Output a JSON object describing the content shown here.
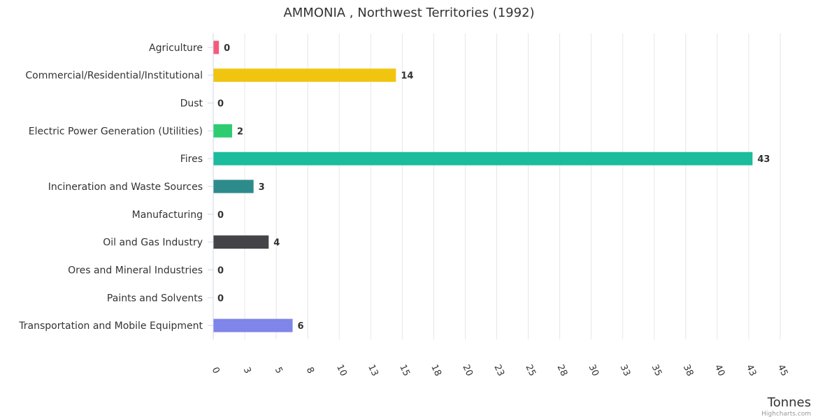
{
  "chart_data": {
    "type": "bar",
    "orientation": "horizontal",
    "title": "AMMONIA , Northwest Territories (1992)",
    "xlabel": "Tonnes",
    "categories": [
      "Agriculture",
      "Commercial/Residential/Institutional",
      "Dust",
      "Electric Power Generation (Utilities)",
      "Fires",
      "Incineration and Waste Sources",
      "Manufacturing",
      "Oil and Gas Industry",
      "Ores and Mineral Industries",
      "Paints and Solvents",
      "Transportation and Mobile Equipment"
    ],
    "values": [
      0.45,
      14.5,
      0,
      1.5,
      42.8,
      3.2,
      0,
      4.4,
      0,
      0,
      6.3
    ],
    "data_labels": [
      "0",
      "14",
      "0",
      "2",
      "43",
      "3",
      "0",
      "4",
      "0",
      "0",
      "6"
    ],
    "colors": [
      "#f45b7a",
      "#f1c40f",
      "#cccccc",
      "#2ecc71",
      "#1abc9c",
      "#2e8b8b",
      "#cccccc",
      "#434348",
      "#cccccc",
      "#cccccc",
      "#8085e9"
    ],
    "xlim": [
      0,
      45
    ],
    "ticks": [
      0,
      2.5,
      5,
      7.5,
      10,
      12.5,
      15,
      17.5,
      20,
      22.5,
      25,
      27.5,
      30,
      32.5,
      35,
      37.5,
      40,
      42.5,
      45
    ],
    "tick_labels": [
      "0",
      "3",
      "5",
      "8",
      "10",
      "13",
      "15",
      "18",
      "20",
      "23",
      "25",
      "28",
      "30",
      "33",
      "35",
      "38",
      "40",
      "43",
      "45"
    ],
    "grid": true,
    "credits": "Highcharts.com"
  }
}
